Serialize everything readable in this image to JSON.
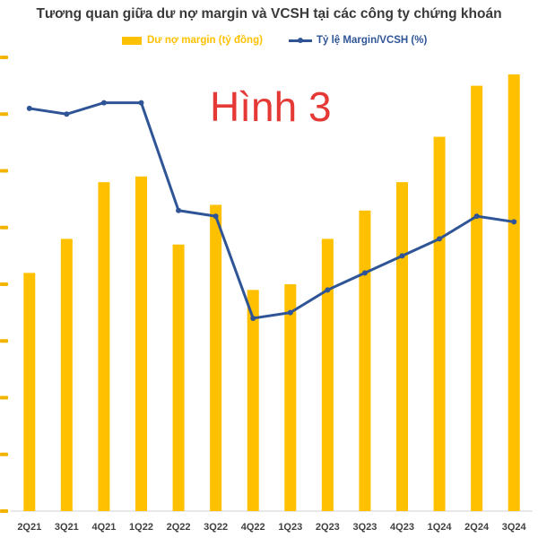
{
  "chart_data": {
    "type": "bar",
    "title": "Tương quan giữa dư nợ margin và VCSH tại các công ty chứng khoán",
    "annotation": "Hình 3",
    "categories": [
      "2Q21",
      "3Q21",
      "4Q21",
      "1Q22",
      "2Q22",
      "3Q22",
      "4Q22",
      "1Q23",
      "2Q23",
      "3Q23",
      "4Q23",
      "1Q24",
      "2Q24",
      "3Q24"
    ],
    "series": [
      {
        "name": "Dư nợ margin (tỷ đồng)",
        "type": "bar",
        "color": "#ffc000",
        "values": [
          4.2,
          4.8,
          5.8,
          5.9,
          4.7,
          5.4,
          3.9,
          4.0,
          4.8,
          5.3,
          5.8,
          6.6,
          7.5,
          7.7
        ]
      },
      {
        "name": "Tỷ lệ Margin/VCSH (%)",
        "type": "line",
        "color": "#2f5597",
        "values": [
          7.1,
          7.0,
          7.2,
          7.2,
          5.3,
          5.2,
          3.4,
          3.5,
          3.9,
          4.2,
          4.5,
          4.8,
          5.2,
          5.1
        ]
      }
    ],
    "ylim": [
      0,
      8
    ],
    "grid": false,
    "legend_position": "top"
  }
}
